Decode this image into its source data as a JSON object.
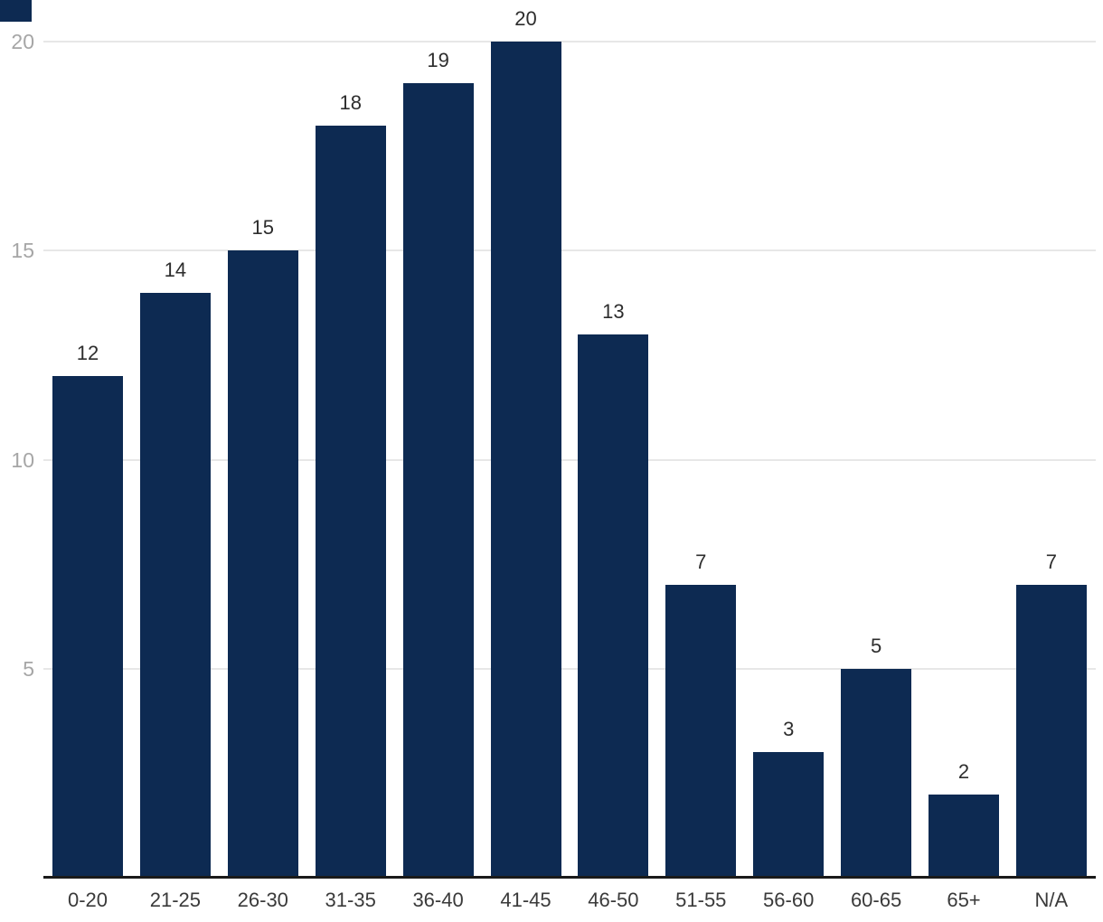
{
  "chart_data": {
    "type": "bar",
    "title": "",
    "xlabel": "",
    "ylabel": "",
    "categories": [
      "0-20",
      "21-25",
      "26-30",
      "31-35",
      "36-40",
      "41-45",
      "46-50",
      "51-55",
      "56-60",
      "60-65",
      "65+",
      "N/A"
    ],
    "values": [
      12,
      14,
      15,
      18,
      19,
      20,
      13,
      7,
      3,
      5,
      2,
      7
    ],
    "ylim": [
      0,
      20
    ],
    "yticks": [
      5,
      10,
      15,
      20
    ],
    "grid": true,
    "legend_position": "none",
    "value_labels_shown": true
  },
  "colors": {
    "bar": "#0d2a52",
    "gridline": "#e7e7e7",
    "axis_line": "#1a1a1a",
    "y_tick_label": "#a6a6a6",
    "x_tick_label": "#3a3a3a",
    "value_label": "#2d2d2d",
    "background": "#ffffff",
    "corner_artifact": "#0d2a52"
  }
}
